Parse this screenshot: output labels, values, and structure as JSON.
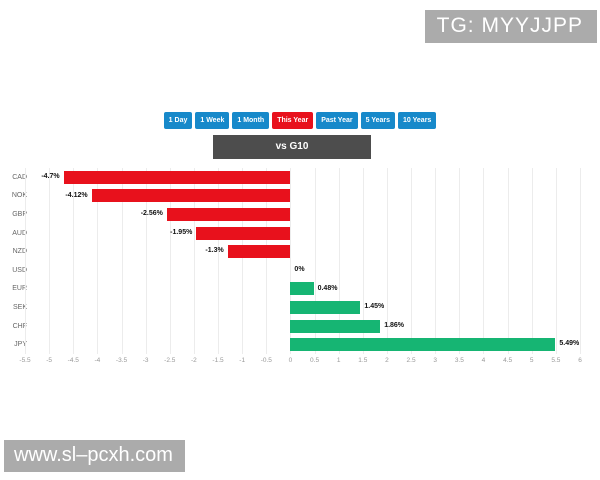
{
  "header": {
    "badge_text": "TG: MYYJJPP"
  },
  "watermark_text": "www.sl–pcxh.com",
  "comparison_label": "vs G10",
  "period_buttons": [
    {
      "label": "1 Day",
      "active": false
    },
    {
      "label": "1 Week",
      "active": false
    },
    {
      "label": "1 Month",
      "active": false
    },
    {
      "label": "This Year",
      "active": true
    },
    {
      "label": "Past Year",
      "active": false
    },
    {
      "label": "5 Years",
      "active": false
    },
    {
      "label": "10 Years",
      "active": false
    }
  ],
  "colors": {
    "positive": "#16b573",
    "negative": "#e8111c",
    "button_blue": "#1789ca",
    "button_red": "#e8111c",
    "header_gray": "#4d4d4d",
    "badge_gray": "#ababab"
  },
  "chart_data": {
    "type": "bar",
    "orientation": "horizontal",
    "title": "vs G10",
    "categories": [
      "CAD",
      "NOK",
      "GBP",
      "AUD",
      "NZD",
      "USD",
      "EUR",
      "SEK",
      "CHF",
      "JPY"
    ],
    "values": [
      -4.7,
      -4.12,
      -2.56,
      -1.95,
      -1.3,
      0,
      0.48,
      1.45,
      1.86,
      5.49
    ],
    "value_labels": [
      "-4.7%",
      "-4.12%",
      "-2.56%",
      "-1.95%",
      "-1.3%",
      "0%",
      "0.48%",
      "1.45%",
      "1.86%",
      "5.49%"
    ],
    "xlim": [
      -5.5,
      6
    ],
    "tick_step": 0.5,
    "ticks": [
      "-5.5",
      "-5",
      "-4.5",
      "-4",
      "-3.5",
      "-3",
      "-2.5",
      "-2",
      "-1.5",
      "-1",
      "-0.5",
      "0",
      "0.5",
      "1",
      "1.5",
      "2",
      "2.5",
      "3",
      "3.5",
      "4",
      "4.5",
      "5",
      "5.5",
      "6"
    ],
    "grid": true,
    "legend": false,
    "negative_color": "#e8111c",
    "positive_color": "#16b573"
  }
}
